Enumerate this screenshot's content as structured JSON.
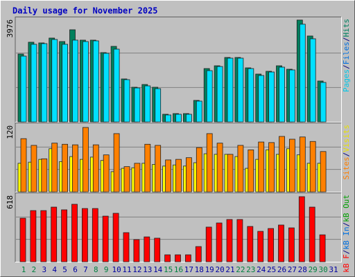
{
  "chart_data": [
    {
      "type": "bar",
      "title": "Daily usage for November 2025",
      "ylim": [
        0,
        3976
      ],
      "yticks": [
        3976
      ],
      "legend": [
        {
          "text": "Pages",
          "color": "#00c8e8"
        },
        {
          "text": "Files",
          "color": "#0070e0"
        },
        {
          "text": "Hits",
          "color": "#008060"
        }
      ],
      "legend_separator": "/",
      "series": [
        {
          "color": "#00805c",
          "values": [
            2615,
            3070,
            3043,
            3230,
            3096,
            3550,
            3150,
            3150,
            2670,
            2910,
            1655,
            1335,
            1441,
            1335,
            294,
            320,
            320,
            828,
            2055,
            2162,
            2482,
            2482,
            2082,
            1842,
            1949,
            2162,
            2029,
            3924,
            3310,
            1575,
            null
          ]
        },
        {
          "color": "#00e0ff",
          "values": [
            2535,
            2990,
            3016,
            3176,
            2990,
            3150,
            3096,
            3123,
            2643,
            2803,
            1628,
            1308,
            1388,
            1281,
            267,
            294,
            294,
            801,
            1975,
            2135,
            2456,
            2456,
            2055,
            1788,
            1922,
            2109,
            2002,
            3764,
            3203,
            1521,
            null
          ]
        }
      ]
    },
    {
      "type": "bar",
      "ylim": [
        0,
        120
      ],
      "yticks": [
        120
      ],
      "legend": [
        {
          "text": "Sites",
          "color": "#ff8000"
        },
        {
          "text": "Visits",
          "color": "#e8e000"
        }
      ],
      "legend_separator": "/",
      "series": [
        {
          "color": "#ffff00",
          "values": [
            51,
            53,
            58,
            77,
            54,
            63,
            58,
            62,
            56,
            36,
            42,
            43,
            51,
            49,
            46,
            48,
            46,
            52,
            68,
            67,
            67,
            63,
            42,
            58,
            75,
            67,
            77,
            66,
            51,
            51,
            null
          ]
        },
        {
          "color": "#ff8000",
          "values": [
            95,
            83,
            59,
            87,
            85,
            84,
            115,
            84,
            66,
            104,
            45,
            51,
            85,
            83,
            57,
            58,
            61,
            79,
            104,
            87,
            67,
            83,
            75,
            89,
            88,
            99,
            94,
            98,
            90,
            72,
            null
          ]
        }
      ]
    },
    {
      "type": "bar",
      "ylim": [
        0,
        618
      ],
      "yticks": [
        618
      ],
      "legend": [
        {
          "text": "kB F",
          "color": "#ff0000"
        },
        {
          "text": "kB In",
          "color": "#0070e0"
        },
        {
          "text": "kB Out",
          "color": "#00a000"
        }
      ],
      "legend_separator": "/",
      "categories": [
        "1",
        "2",
        "3",
        "4",
        "5",
        "6",
        "7",
        "8",
        "9",
        "10",
        "11",
        "12",
        "13",
        "14",
        "15",
        "16",
        "17",
        "18",
        "19",
        "20",
        "21",
        "22",
        "23",
        "24",
        "25",
        "26",
        "27",
        "28",
        "29",
        "30",
        "31"
      ],
      "category_colors": [
        "#008040",
        "#008040",
        "#0000a0",
        "#0000a0",
        "#0000a0",
        "#0000a0",
        "#0000a0",
        "#008040",
        "#008040",
        "#0000a0",
        "#0000a0",
        "#0000a0",
        "#0000a0",
        "#0000a0",
        "#008040",
        "#008040",
        "#0000a0",
        "#0000a0",
        "#0000a0",
        "#0000a0",
        "#0000a0",
        "#008040",
        "#008040",
        "#0000a0",
        "#0000a0",
        "#0000a0",
        "#0000a0",
        "#0000a0",
        "#008040",
        "#008040",
        "#0000a0"
      ],
      "series": [
        {
          "color": "#ff0000",
          "values": [
            401,
            471,
            471,
            503,
            478,
            529,
            490,
            490,
            420,
            446,
            268,
            204,
            229,
            217,
            64,
            64,
            64,
            140,
            319,
            357,
            389,
            389,
            325,
            280,
            306,
            338,
            312,
            599,
            503,
            248,
            null
          ]
        }
      ]
    }
  ]
}
